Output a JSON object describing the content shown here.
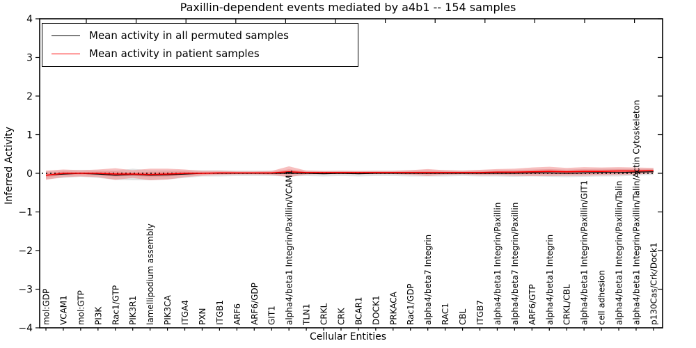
{
  "chart_data": {
    "type": "line",
    "title": "Paxillin-dependent events mediated by a4b1 -- 154 samples",
    "xlabel": "Cellular Entities",
    "ylabel": "Inferred Activity",
    "ylim": [
      -4,
      4
    ],
    "yticks": [
      4,
      3,
      2,
      1,
      0,
      -1,
      -2,
      -3,
      -4
    ],
    "ytick_labels": [
      "4",
      "3",
      "2",
      "1",
      "0",
      "−1",
      "−2",
      "−3",
      "−4"
    ],
    "grid": false,
    "legend_position": "upper left",
    "legend": {
      "entries": [
        {
          "label": "Mean activity in all permuted samples",
          "color": "#000000"
        },
        {
          "label": "Mean activity in patient samples",
          "color": "#ff0000"
        }
      ]
    },
    "reference_line": {
      "y": 0,
      "style": "dotted",
      "color": "#000000"
    },
    "categories": [
      "mol:GDP",
      "VCAM1",
      "mol:GTP",
      "PI3K",
      "Rac1/GTP",
      "PIK3R1",
      "lamellipodium assembly",
      "PIK3CA",
      "ITGA4",
      "PXN",
      "ITGB1",
      "ARF6",
      "ARF6/GDP",
      "GIT1",
      "alpha4/beta1 Integrin/Paxillin/VCAM1",
      "TLN1",
      "CRKL",
      "CRK",
      "BCAR1",
      "DOCK1",
      "PRKACA",
      "Rac1/GDP",
      "alpha4/beta7 Integrin",
      "RAC1",
      "CBL",
      "ITGB7",
      "alpha4/beta1 Integrin/Paxillin",
      "alpha4/beta7 Integrin/Paxillin",
      "ARF6/GTP",
      "alpha4/beta1 Integrin",
      "CRKL/CBL",
      "alpha4/beta1 Integrin/Paxillin/GIT1",
      "cell adhesion",
      "alpha4/beta1 Integrin/Paxillin/Talin",
      "alpha4/beta1 Integrin/Paxillin/Talin/Actin Cytoskeleton",
      "p130Cas/Crk/Dock1"
    ],
    "series": [
      {
        "name": "Mean activity in all permuted samples",
        "kind": "line",
        "color": "#000000",
        "values": [
          -0.05,
          -0.02,
          0.0,
          -0.02,
          -0.05,
          -0.03,
          -0.05,
          -0.04,
          -0.02,
          0.0,
          0.0,
          0.0,
          0.0,
          0.0,
          0.0,
          0.0,
          -0.01,
          0.0,
          -0.01,
          0.0,
          0.0,
          0.0,
          0.0,
          0.0,
          0.0,
          0.0,
          0.0,
          0.0,
          0.01,
          0.01,
          0.0,
          0.01,
          0.02,
          0.02,
          0.03,
          0.04
        ]
      },
      {
        "name": "Permuted samples band half-width",
        "kind": "band",
        "color": "#c8c8c8",
        "center_series": 0,
        "values": [
          0.1,
          0.1,
          0.09,
          0.1,
          0.12,
          0.15,
          0.13,
          0.12,
          0.1,
          0.08,
          0.08,
          0.07,
          0.07,
          0.07,
          0.08,
          0.07,
          0.07,
          0.07,
          0.07,
          0.07,
          0.07,
          0.08,
          0.08,
          0.08,
          0.07,
          0.08,
          0.08,
          0.09,
          0.09,
          0.1,
          0.1,
          0.1,
          0.1,
          0.1,
          0.09,
          0.08
        ]
      },
      {
        "name": "Mean activity in patient samples",
        "kind": "line",
        "color": "#ff0000",
        "values": [
          -0.05,
          0.0,
          0.0,
          0.0,
          -0.02,
          -0.02,
          -0.03,
          -0.02,
          0.0,
          0.0,
          0.01,
          0.01,
          0.01,
          0.01,
          0.04,
          0.02,
          0.02,
          0.02,
          0.02,
          0.02,
          0.02,
          0.02,
          0.02,
          0.02,
          0.02,
          0.02,
          0.03,
          0.03,
          0.04,
          0.05,
          0.04,
          0.05,
          0.05,
          0.06,
          0.06,
          0.07
        ]
      },
      {
        "name": "Patient samples band half-width",
        "kind": "band",
        "color": "#f08080",
        "center_series": 2,
        "inner": 0.45,
        "values": [
          0.12,
          0.1,
          0.08,
          0.1,
          0.15,
          0.1,
          0.15,
          0.14,
          0.1,
          0.06,
          0.05,
          0.04,
          0.04,
          0.05,
          0.14,
          0.05,
          0.04,
          0.04,
          0.04,
          0.04,
          0.04,
          0.06,
          0.09,
          0.06,
          0.05,
          0.07,
          0.08,
          0.09,
          0.11,
          0.12,
          0.1,
          0.11,
          0.1,
          0.1,
          0.09,
          0.07
        ]
      }
    ]
  }
}
